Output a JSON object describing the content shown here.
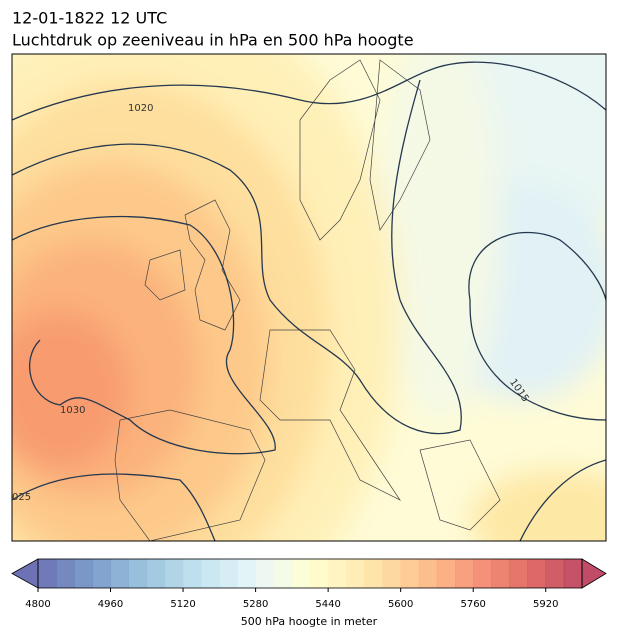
{
  "header": {
    "title": "12-01-1822 12 UTC",
    "subtitle": "Luchtdruk op zeeniveau in hPa en 500 hPa hoogte"
  },
  "map": {
    "contour_labels": [
      "1020",
      "1030",
      "1015",
      "025"
    ]
  },
  "colorbar": {
    "lim": [
      4800,
      6000
    ],
    "step": 40,
    "ticks": [
      4800,
      4960,
      5120,
      5280,
      5440,
      5600,
      5760,
      5920
    ],
    "colormap": [
      "#313695",
      "#4575b4",
      "#74add1",
      "#abd9e9",
      "#e0f3f8",
      "#ffffbf",
      "#fee090",
      "#fdae61",
      "#f46d43",
      "#d73027",
      "#a50026"
    ],
    "label": "500 hPa hoogte in meter"
  }
}
